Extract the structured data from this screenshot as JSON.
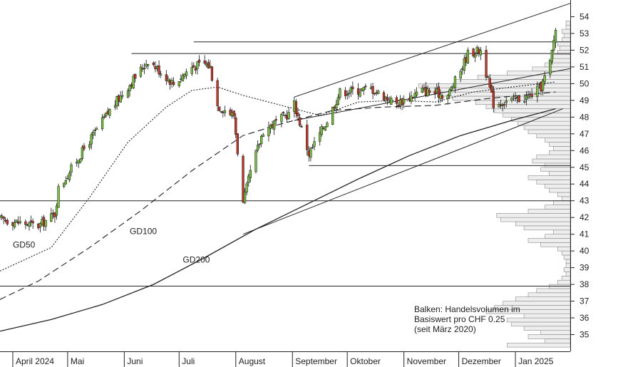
{
  "chart_data": {
    "type": "candlestick",
    "title": "",
    "xlabel": "",
    "ylabel": "",
    "ylim": [
      34,
      55
    ],
    "yticks": [
      35,
      36,
      37,
      38,
      39,
      40,
      41,
      42,
      43,
      44,
      45,
      46,
      47,
      48,
      49,
      50,
      51,
      52,
      53,
      54
    ],
    "ytick_labels": [
      "35",
      "36",
      "37",
      "38",
      "39",
      "40",
      "41",
      "42",
      "43",
      "44",
      "45",
      "46",
      "47",
      "48",
      "49",
      "50",
      "51",
      "52",
      "53",
      "54"
    ],
    "x_start": "2024-03-25",
    "x_end": "2025-01-31",
    "months": [
      {
        "label": "April 2024",
        "date": "2024-04-01"
      },
      {
        "label": "Mai",
        "date": "2024-05-01"
      },
      {
        "label": "Juni",
        "date": "2024-06-01"
      },
      {
        "label": "Juli",
        "date": "2024-07-01"
      },
      {
        "label": "August",
        "date": "2024-08-01"
      },
      {
        "label": "September",
        "date": "2024-09-01"
      },
      {
        "label": "Oktober",
        "date": "2024-10-01"
      },
      {
        "label": "November",
        "date": "2024-11-01"
      },
      {
        "label": "Dezember",
        "date": "2024-12-01"
      },
      {
        "label": "Jan 2025",
        "date": "2025-01-01"
      }
    ],
    "price_path": [
      [
        "2024-03-25",
        41.9
      ],
      [
        "2024-04-15",
        41.5
      ],
      [
        "2024-04-24",
        42.2
      ],
      [
        "2024-04-26",
        43.7
      ],
      [
        "2024-05-10",
        46.1
      ],
      [
        "2024-05-24",
        48.4
      ],
      [
        "2024-06-07",
        50.4
      ],
      [
        "2024-06-14",
        51.4
      ],
      [
        "2024-06-28",
        50.0
      ],
      [
        "2024-07-08",
        51.0
      ],
      [
        "2024-07-15",
        51.2
      ],
      [
        "2024-07-18",
        51.0
      ],
      [
        "2024-07-22",
        48.7
      ],
      [
        "2024-07-31",
        48.1
      ],
      [
        "2024-08-05",
        42.8
      ],
      [
        "2024-08-09",
        44.7
      ],
      [
        "2024-08-16",
        47.2
      ],
      [
        "2024-08-30",
        48.2
      ],
      [
        "2024-09-02",
        48.8
      ],
      [
        "2024-09-06",
        47.3
      ],
      [
        "2024-09-10",
        45.8
      ],
      [
        "2024-09-20",
        47.8
      ],
      [
        "2024-09-27",
        49.5
      ],
      [
        "2024-10-14",
        49.7
      ],
      [
        "2024-10-28",
        48.8
      ],
      [
        "2024-11-11",
        49.6
      ],
      [
        "2024-11-25",
        49.3
      ],
      [
        "2024-12-02",
        50.8
      ],
      [
        "2024-12-06",
        51.8
      ],
      [
        "2024-12-13",
        52.0
      ],
      [
        "2024-12-20",
        48.8
      ],
      [
        "2025-01-08",
        49.2
      ],
      [
        "2025-01-15",
        49.8
      ],
      [
        "2025-01-20",
        51.2
      ],
      [
        "2025-01-23",
        53.3
      ]
    ],
    "moving_averages": [
      {
        "name": "GD50",
        "style": "dotted",
        "points": [
          [
            "2024-03-25",
            38.8
          ],
          [
            "2024-04-22",
            40.2
          ],
          [
            "2024-05-13",
            43.2
          ],
          [
            "2024-06-03",
            46.5
          ],
          [
            "2024-06-24",
            48.6
          ],
          [
            "2024-07-08",
            49.6
          ],
          [
            "2024-07-22",
            49.8
          ],
          [
            "2024-08-05",
            49.3
          ],
          [
            "2024-08-26",
            48.7
          ],
          [
            "2024-09-16",
            48.1
          ],
          [
            "2024-10-07",
            48.9
          ],
          [
            "2024-10-28",
            49.0
          ],
          [
            "2024-11-18",
            48.9
          ],
          [
            "2024-12-09",
            49.5
          ],
          [
            "2024-12-30",
            49.8
          ],
          [
            "2025-01-23",
            50.1
          ]
        ]
      },
      {
        "name": "GD100",
        "style": "dashed",
        "points": [
          [
            "2024-03-25",
            37.1
          ],
          [
            "2024-04-15",
            38.2
          ],
          [
            "2024-05-13",
            40.2
          ],
          [
            "2024-06-10",
            42.4
          ],
          [
            "2024-07-08",
            44.8
          ],
          [
            "2024-08-05",
            46.9
          ],
          [
            "2024-08-26",
            47.6
          ],
          [
            "2024-09-23",
            48.4
          ],
          [
            "2024-10-21",
            48.6
          ],
          [
            "2024-11-18",
            48.7
          ],
          [
            "2024-12-16",
            49.1
          ],
          [
            "2025-01-23",
            49.5
          ]
        ]
      },
      {
        "name": "GD200",
        "style": "solid",
        "points": [
          [
            "2024-03-25",
            35.2
          ],
          [
            "2024-04-22",
            35.9
          ],
          [
            "2024-05-20",
            36.8
          ],
          [
            "2024-06-17",
            38.0
          ],
          [
            "2024-07-15",
            39.6
          ],
          [
            "2024-08-12",
            41.3
          ],
          [
            "2024-09-09",
            42.8
          ],
          [
            "2024-10-07",
            44.3
          ],
          [
            "2024-11-04",
            45.7
          ],
          [
            "2024-12-02",
            46.9
          ],
          [
            "2024-12-30",
            47.8
          ],
          [
            "2025-01-23",
            48.5
          ]
        ]
      }
    ],
    "ma_labels": [
      {
        "text": "GD50",
        "date": "2024-04-01",
        "value": 40.2
      },
      {
        "text": "GD100",
        "date": "2024-06-04",
        "value": 41.0
      },
      {
        "text": "GD200",
        "date": "2024-07-03",
        "value": 39.3
      }
    ],
    "trend_lines": [
      {
        "from": [
          "2024-09-02",
          49.2
        ],
        "to": [
          "2025-01-31",
          54.8
        ]
      },
      {
        "from": [
          "2024-09-02",
          47.8
        ],
        "to": [
          "2025-01-31",
          50.9
        ]
      },
      {
        "from": [
          "2024-08-05",
          41.0
        ],
        "to": [
          "2025-01-27",
          48.5
        ]
      }
    ],
    "horizontal_lines": [
      {
        "value": 52.5,
        "from": "2024-07-09",
        "to": "2025-01-31"
      },
      {
        "value": 51.8,
        "from": "2024-06-05",
        "to": "2025-01-31"
      },
      {
        "value": 45.1,
        "from": "2024-09-10",
        "to": "2025-01-31"
      },
      {
        "value": 43.0,
        "from": "2024-03-25",
        "to": "2025-01-31"
      },
      {
        "value": 37.9,
        "from": "2024-03-25",
        "to": "2025-01-31"
      }
    ],
    "volume_profile": {
      "note": "Balken: Handelsvolumen im Basiswert pro CHF 0.25 (seit März 2020)",
      "step": 0.25,
      "bins": [
        [
          34.25,
          0.3
        ],
        [
          34.5,
          0.12
        ],
        [
          34.75,
          0.2
        ],
        [
          35.0,
          0.14
        ],
        [
          35.25,
          0.22
        ],
        [
          35.5,
          0.28
        ],
        [
          35.75,
          0.3
        ],
        [
          36.0,
          0.22
        ],
        [
          36.25,
          0.4
        ],
        [
          36.5,
          0.36
        ],
        [
          36.75,
          0.32
        ],
        [
          37.0,
          0.26
        ],
        [
          37.25,
          0.2
        ],
        [
          37.5,
          0.16
        ],
        [
          37.75,
          0.1
        ],
        [
          38.0,
          0.06
        ],
        [
          38.25,
          0.04
        ],
        [
          38.5,
          0.02
        ],
        [
          38.75,
          0.03
        ],
        [
          39.0,
          0.02
        ],
        [
          39.25,
          0.02
        ],
        [
          39.5,
          0.03
        ],
        [
          39.75,
          0.04
        ],
        [
          40.0,
          0.06
        ],
        [
          40.25,
          0.14
        ],
        [
          40.5,
          0.2
        ],
        [
          40.75,
          0.12
        ],
        [
          41.0,
          0.08
        ],
        [
          41.25,
          0.22
        ],
        [
          41.5,
          0.26
        ],
        [
          41.75,
          0.33
        ],
        [
          42.0,
          0.35
        ],
        [
          42.25,
          0.2
        ],
        [
          42.5,
          0.12
        ],
        [
          42.75,
          0.08
        ],
        [
          43.0,
          0.04
        ],
        [
          43.25,
          0.06
        ],
        [
          43.5,
          0.1
        ],
        [
          43.75,
          0.12
        ],
        [
          44.0,
          0.16
        ],
        [
          44.25,
          0.2
        ],
        [
          44.5,
          0.1
        ],
        [
          44.75,
          0.14
        ],
        [
          45.0,
          0.12
        ],
        [
          45.25,
          0.18
        ],
        [
          45.5,
          0.16
        ],
        [
          45.75,
          0.1
        ],
        [
          46.0,
          0.08
        ],
        [
          46.25,
          0.1
        ],
        [
          46.5,
          0.12
        ],
        [
          46.75,
          0.16
        ],
        [
          47.0,
          0.2
        ],
        [
          47.25,
          0.22
        ],
        [
          47.5,
          0.25
        ],
        [
          47.75,
          0.28
        ],
        [
          48.0,
          0.32
        ],
        [
          48.25,
          0.36
        ],
        [
          48.5,
          0.4
        ],
        [
          48.75,
          0.45
        ],
        [
          49.0,
          0.56
        ],
        [
          49.25,
          0.62
        ],
        [
          49.5,
          0.68
        ],
        [
          49.75,
          0.72
        ],
        [
          50.0,
          0.55
        ],
        [
          50.25,
          0.44
        ],
        [
          50.5,
          0.3
        ],
        [
          50.75,
          0.18
        ],
        [
          51.0,
          0.12
        ],
        [
          51.25,
          0.1
        ],
        [
          51.5,
          0.08
        ],
        [
          51.75,
          0.06
        ],
        [
          52.0,
          0.05
        ],
        [
          52.25,
          0.06
        ],
        [
          52.5,
          0.04
        ],
        [
          52.75,
          0.03
        ],
        [
          53.0,
          0.04
        ],
        [
          53.25,
          0.02
        ],
        [
          53.5,
          0.02
        ]
      ]
    }
  }
}
